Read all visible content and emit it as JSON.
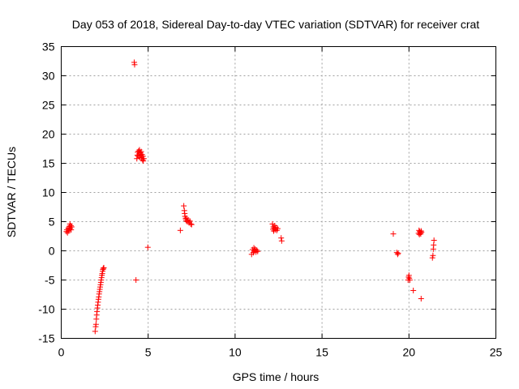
{
  "chart_data": {
    "type": "scatter",
    "title": "Day 053 of 2018, Sidereal Day-to-day VTEC variation (SDTVAR) for receiver crat",
    "xlabel": "GPS time / hours",
    "ylabel": "SDTVAR / TECUs",
    "xlim": [
      0,
      25
    ],
    "ylim": [
      -15,
      35
    ],
    "x_ticks": [
      0,
      5,
      10,
      15,
      20,
      25
    ],
    "x_tick_labels": [
      "0",
      "5",
      "10",
      "15",
      "20",
      "25"
    ],
    "y_ticks": [
      -15,
      -10,
      -5,
      0,
      5,
      10,
      15,
      20,
      25,
      30,
      35
    ],
    "y_tick_labels": [
      "-15",
      "-10",
      "-5",
      "0",
      "5",
      "10",
      "15",
      "20",
      "25",
      "30",
      "35"
    ],
    "grid": true,
    "marker": "plus",
    "color": "#ff0000",
    "series": [
      {
        "name": "SDTVAR",
        "points": [
          [
            0.3,
            3.3
          ],
          [
            0.33,
            3.6
          ],
          [
            0.36,
            3.1
          ],
          [
            0.4,
            3.9
          ],
          [
            0.43,
            3.4
          ],
          [
            0.46,
            4.2
          ],
          [
            0.48,
            3.7
          ],
          [
            0.5,
            4.6
          ],
          [
            0.52,
            3.9
          ],
          [
            0.55,
            4.3
          ],
          [
            0.57,
            3.6
          ],
          [
            0.6,
            4.1
          ],
          [
            1.95,
            -13.8
          ],
          [
            1.98,
            -13.0
          ],
          [
            2.0,
            -12.6
          ],
          [
            2.02,
            -11.7
          ],
          [
            2.04,
            -11.0
          ],
          [
            2.06,
            -10.4
          ],
          [
            2.08,
            -9.8
          ],
          [
            2.1,
            -9.3
          ],
          [
            2.12,
            -8.8
          ],
          [
            2.14,
            -8.3
          ],
          [
            2.16,
            -7.9
          ],
          [
            2.18,
            -7.4
          ],
          [
            2.2,
            -7.0
          ],
          [
            2.22,
            -6.6
          ],
          [
            2.24,
            -6.2
          ],
          [
            2.26,
            -5.8
          ],
          [
            2.28,
            -5.4
          ],
          [
            2.3,
            -5.0
          ],
          [
            2.32,
            -4.6
          ],
          [
            2.34,
            -4.2
          ],
          [
            2.36,
            -3.9
          ],
          [
            2.38,
            -3.5
          ],
          [
            2.4,
            -3.2
          ],
          [
            2.42,
            -3.0
          ],
          [
            2.45,
            -2.9
          ],
          [
            4.2,
            32.3
          ],
          [
            4.22,
            31.9
          ],
          [
            4.3,
            -5.0
          ],
          [
            4.35,
            15.8
          ],
          [
            4.38,
            16.4
          ],
          [
            4.4,
            16.9
          ],
          [
            4.42,
            16.2
          ],
          [
            4.45,
            17.1
          ],
          [
            4.48,
            16.6
          ],
          [
            4.5,
            17.3
          ],
          [
            4.52,
            16.0
          ],
          [
            4.55,
            16.8
          ],
          [
            4.58,
            16.4
          ],
          [
            4.6,
            17.0
          ],
          [
            4.62,
            15.9
          ],
          [
            4.65,
            16.5
          ],
          [
            4.68,
            15.6
          ],
          [
            4.7,
            16.2
          ],
          [
            4.72,
            15.4
          ],
          [
            4.75,
            15.8
          ],
          [
            4.98,
            0.6
          ],
          [
            6.85,
            3.5
          ],
          [
            7.05,
            7.7
          ],
          [
            7.08,
            6.9
          ],
          [
            7.1,
            6.4
          ],
          [
            7.12,
            5.9
          ],
          [
            7.15,
            5.5
          ],
          [
            7.18,
            5.2
          ],
          [
            7.2,
            5.6
          ],
          [
            7.25,
            5.0
          ],
          [
            7.3,
            5.3
          ],
          [
            7.35,
            4.8
          ],
          [
            7.4,
            5.1
          ],
          [
            7.45,
            4.6
          ],
          [
            7.5,
            4.5
          ],
          [
            10.95,
            -0.6
          ],
          [
            11.0,
            0.2
          ],
          [
            11.05,
            -0.3
          ],
          [
            11.08,
            0.5
          ],
          [
            11.1,
            0.0
          ],
          [
            11.15,
            0.3
          ],
          [
            11.2,
            -0.2
          ],
          [
            11.25,
            0.1
          ],
          [
            11.3,
            -0.1
          ],
          [
            12.15,
            4.6
          ],
          [
            12.18,
            3.7
          ],
          [
            12.2,
            4.1
          ],
          [
            12.22,
            3.4
          ],
          [
            12.25,
            3.9
          ],
          [
            12.28,
            4.3
          ],
          [
            12.3,
            3.6
          ],
          [
            12.35,
            4.0
          ],
          [
            12.4,
            3.5
          ],
          [
            12.45,
            3.8
          ],
          [
            12.65,
            2.2
          ],
          [
            12.68,
            1.7
          ],
          [
            19.1,
            2.9
          ],
          [
            19.3,
            -0.3
          ],
          [
            19.35,
            -0.6
          ],
          [
            19.38,
            -0.4
          ],
          [
            19.95,
            -5.0
          ],
          [
            19.98,
            -4.5
          ],
          [
            20.0,
            -4.2
          ],
          [
            20.02,
            -4.7
          ],
          [
            20.05,
            -5.0
          ],
          [
            20.25,
            -6.8
          ],
          [
            20.55,
            3.0
          ],
          [
            20.58,
            3.5
          ],
          [
            20.6,
            2.8
          ],
          [
            20.62,
            3.3
          ],
          [
            20.65,
            3.1
          ],
          [
            20.68,
            2.9
          ],
          [
            20.7,
            3.4
          ],
          [
            20.72,
            3.2
          ],
          [
            20.7,
            -8.2
          ],
          [
            21.35,
            -1.2
          ],
          [
            21.38,
            -0.8
          ],
          [
            21.4,
            0.3
          ],
          [
            21.42,
            1.0
          ],
          [
            21.44,
            1.8
          ]
        ]
      }
    ]
  }
}
